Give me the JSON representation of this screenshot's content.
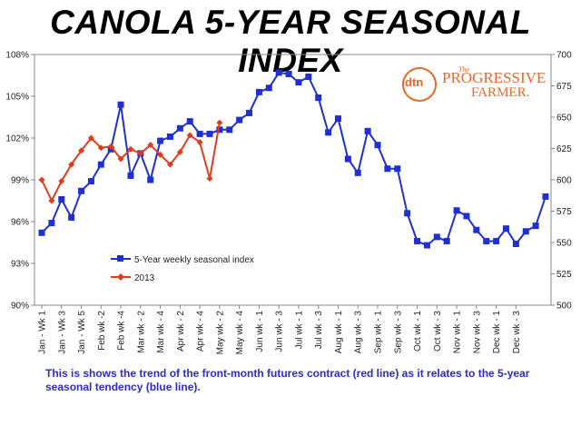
{
  "title": "CANOLA 5-YEAR SEASONAL INDEX",
  "caption": "This is shows the trend of the front-month futures contract (red line) as it relates to the 5-year seasonal tendency (blue line).",
  "logo": {
    "dtn": "dtn",
    "the": "The",
    "line1": "PROGRESSIVE",
    "line2": "FARMER."
  },
  "colors": {
    "blue": "#1f2fd6",
    "red": "#e23b1c",
    "logo": "#e8682a",
    "caption": "#2a2ad8"
  },
  "chart_data": {
    "type": "line",
    "grid": false,
    "legend_position": "lower-left",
    "y_left": {
      "ticks": [
        "90%",
        "93%",
        "96%",
        "99%",
        "102%",
        "105%",
        "108%"
      ],
      "range": [
        90,
        108
      ]
    },
    "y_right": {
      "ticks": [
        "500",
        "525",
        "550",
        "575",
        "600",
        "625",
        "650",
        "675",
        "700"
      ],
      "range": [
        500,
        700
      ]
    },
    "x_tick_labels": [
      "Jan - Wk 1",
      "Jan - Wk 3",
      "Jan - Wk 5",
      "Feb wk -2",
      "Feb wk -4",
      "Mar wk - 2",
      "Mar wk - 4",
      "Apr wk - 2",
      "Apr wk - 4",
      "May wk - 2",
      "May wk - 4",
      "Jun wk - 1",
      "Jun wk - 3",
      "Jul wk - 1",
      "Jul wk - 3",
      "Aug wk - 1",
      "Aug wk - 3",
      "Sep wk - 1",
      "Sep wk - 3",
      "Oct wk - 1",
      "Oct wk - 3",
      "Nov wk - 1",
      "Nov wk - 3",
      "Dec wk - 1",
      "Dec wk - 3"
    ],
    "series": [
      {
        "name": "5-Year weekly seasonal index",
        "axis": "left",
        "color": "#1f2fd6",
        "values": [
          95.2,
          95.9,
          97.6,
          96.3,
          98.2,
          98.9,
          100.1,
          101.2,
          104.4,
          99.3,
          100.9,
          99.0,
          101.8,
          102.1,
          102.7,
          103.2,
          102.3,
          102.3,
          102.6,
          102.6,
          103.3,
          103.8,
          105.3,
          105.6,
          106.7,
          106.6,
          106.0,
          106.4,
          104.9,
          102.4,
          103.4,
          100.5,
          99.5,
          102.5,
          101.5,
          99.8,
          99.8,
          96.6,
          94.6,
          94.3,
          94.9,
          94.6,
          96.8,
          96.4,
          95.4,
          94.6,
          94.6,
          95.5,
          94.4,
          95.3,
          95.7,
          97.8
        ]
      },
      {
        "name": "2013",
        "axis": "left",
        "color": "#e23b1c",
        "values": [
          99.0,
          97.5,
          98.9,
          100.1,
          101.1,
          102.0,
          101.3,
          101.4,
          100.5,
          101.2,
          100.9,
          101.5,
          100.8,
          100.1,
          101.0,
          102.2,
          101.7,
          99.1,
          103.1
        ]
      }
    ]
  }
}
